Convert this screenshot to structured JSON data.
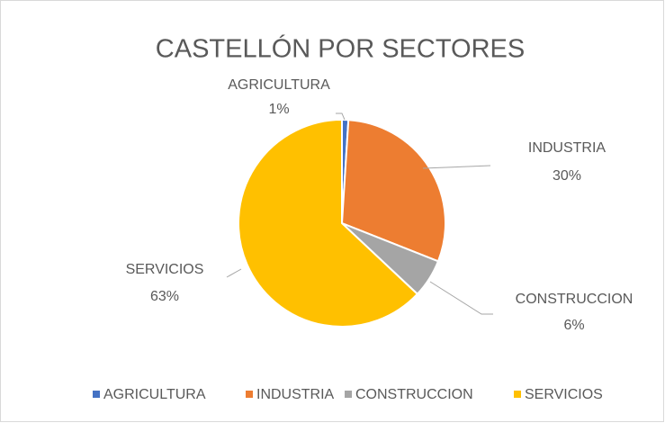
{
  "chart_data": {
    "type": "pie",
    "title": "CASTELLÓN POR SECTORES",
    "categories": [
      "AGRICULTURA",
      "INDUSTRIA",
      "CONSTRUCCION",
      "SERVICIOS"
    ],
    "values": [
      1,
      30,
      6,
      63
    ],
    "value_labels": [
      "1%",
      "30%",
      "6%",
      "63%"
    ],
    "colors": [
      "#4472c4",
      "#ed7d31",
      "#a5a5a5",
      "#ffc000"
    ],
    "legend": "bottom"
  }
}
